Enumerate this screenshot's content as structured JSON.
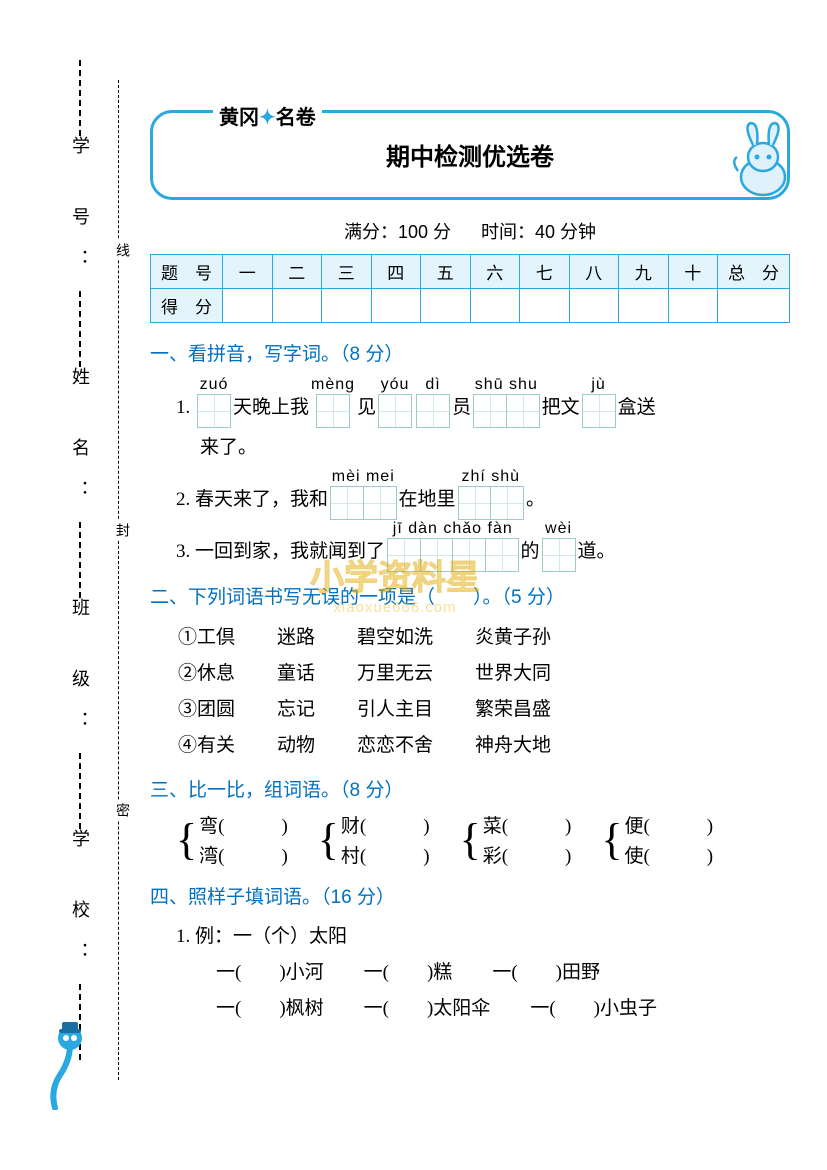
{
  "colors": {
    "accent": "#2aa8e0",
    "header_bg": "#e4f4fc",
    "section": "#0070c0",
    "grid_border": "#99cccc",
    "watermark": "#f5c23a"
  },
  "side": {
    "labels": [
      "学 号：",
      "姓 名：",
      "班 级：",
      "学 校："
    ],
    "seal": [
      "线",
      "封",
      "密"
    ]
  },
  "header": {
    "brand_left": "黄冈",
    "brand_right": "名卷",
    "title": "期中检测优选卷",
    "full_score_label": "满分：",
    "full_score": "100 分",
    "time_label": "时间：",
    "time": "40 分钟"
  },
  "score_table": {
    "row_labels": [
      "题　号",
      "得　分"
    ],
    "cols": [
      "一",
      "二",
      "三",
      "四",
      "五",
      "六",
      "七",
      "八",
      "九",
      "十",
      "总　分"
    ]
  },
  "s1": {
    "title": "一、看拼音，写字词。（8 分）",
    "q1": {
      "num": "1.",
      "parts": [
        {
          "py": "zuó",
          "n": 1
        },
        "天晚上我",
        {
          "py": "mèng",
          "n": 1
        },
        "见",
        {
          "py": "yóu",
          "n": 1
        },
        {
          "py": "dì",
          "n": 1
        },
        "员",
        {
          "py": "shū shu",
          "n": 2
        },
        "把文",
        {
          "py": "jù",
          "n": 1
        },
        "盒送"
      ],
      "tail": "来了。"
    },
    "q2": {
      "num": "2.",
      "pre": "春天来了，我和",
      "b1": {
        "py": "mèi mei",
        "n": 2
      },
      "mid": "在地里",
      "b2": {
        "py": "zhí shù",
        "n": 2
      },
      "end": "。"
    },
    "q3": {
      "num": "3.",
      "pre": "一回到家，我就闻到了",
      "b1": {
        "py": "jī dàn chǎo fàn",
        "n": 4
      },
      "mid": "的",
      "b2": {
        "py": "wèi",
        "n": 1
      },
      "end": "道。"
    }
  },
  "s2": {
    "title": "二、下列词语书写无误的一项是（　　）。（5 分）",
    "rows": [
      [
        "①工倶",
        "迷路",
        "碧空如洗",
        "炎黄子孙"
      ],
      [
        "②休息",
        "童话",
        "万里无云",
        "世界大同"
      ],
      [
        "③团圆",
        "忘记",
        "引人主目",
        "繁荣昌盛"
      ],
      [
        "④有关",
        "动物",
        "恋恋不舍",
        "神舟大地"
      ]
    ]
  },
  "s3": {
    "title": "三、比一比，组词语。（8 分）",
    "pairs": [
      [
        "弯(　　　)",
        "湾(　　　)"
      ],
      [
        "财(　　　)",
        "村(　　　)"
      ],
      [
        "菜(　　　)",
        "彩(　　　)"
      ],
      [
        "便(　　　)",
        "使(　　　)"
      ]
    ]
  },
  "s4": {
    "title": "四、照样子填词语。（16 分）",
    "example_label": "1. 例：",
    "example": "一（个）太阳",
    "rows": [
      [
        "一(　　)小河",
        "一(　　)糕",
        "一(　　)田野"
      ],
      [
        "一(　　)枫树",
        "一(　　)太阳伞",
        "一(　　)小虫子"
      ]
    ]
  },
  "watermark": {
    "line1": "小学资料星",
    "line2": "xiaoxue666.com"
  }
}
